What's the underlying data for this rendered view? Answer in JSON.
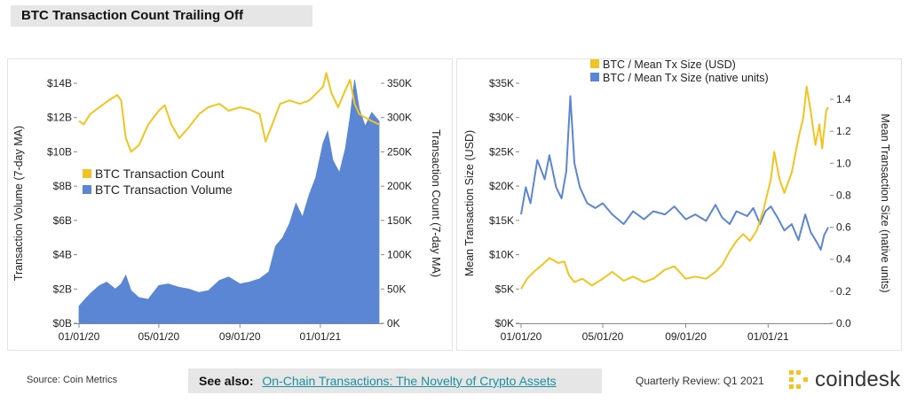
{
  "page": {
    "title": "BTC Transaction Count Trailing Off",
    "source": "Source: Coin Metrics",
    "see_also_label": "See also:",
    "see_also_link": "On-Chain Transactions: The Novelty of Crypto Assets",
    "review": "Quarterly Review: Q1 2021",
    "brand": "coindesk"
  },
  "colors": {
    "yellow": "#f2c41f",
    "blue": "#5b86d4"
  },
  "chart_data": [
    {
      "type": "area+line",
      "title": "",
      "xlabel": "",
      "x_ticks": [
        "01/01/20",
        "05/01/20",
        "09/01/20",
        "01/01/21"
      ],
      "x_range": [
        "2020-01-01",
        "2021-03-31"
      ],
      "y_left": {
        "label": "Transaction Volume (7-day MA)",
        "ticks": [
          "$0B",
          "$2B",
          "$4B",
          "$6B",
          "$8B",
          "$10B",
          "$12B",
          "$14B"
        ],
        "range": [
          0,
          14
        ]
      },
      "y_right": {
        "label": "Transaction Count (7-day MA)",
        "ticks": [
          "0K",
          "50K",
          "100K",
          "150K",
          "200K",
          "250K",
          "300K",
          "350K"
        ],
        "range": [
          0,
          350
        ]
      },
      "legend": [
        "BTC Transaction Count",
        "BTC Transaction Volume"
      ],
      "legend_position": "middle-left",
      "series": [
        {
          "name": "BTC Transaction Volume",
          "axis": "left",
          "color": "#5b86d4",
          "kind": "area",
          "points": [
            [
              "2020-01-01",
              1.0
            ],
            [
              "2020-01-10",
              1.4
            ],
            [
              "2020-01-20",
              1.8
            ],
            [
              "2020-02-01",
              2.2
            ],
            [
              "2020-02-12",
              2.4
            ],
            [
              "2020-02-25",
              2.0
            ],
            [
              "2020-03-05",
              2.3
            ],
            [
              "2020-03-12",
              2.8
            ],
            [
              "2020-03-20",
              1.9
            ],
            [
              "2020-04-01",
              1.5
            ],
            [
              "2020-04-15",
              1.4
            ],
            [
              "2020-05-01",
              2.2
            ],
            [
              "2020-05-15",
              2.3
            ],
            [
              "2020-06-01",
              2.1
            ],
            [
              "2020-06-15",
              2.0
            ],
            [
              "2020-07-01",
              1.8
            ],
            [
              "2020-07-15",
              1.9
            ],
            [
              "2020-08-01",
              2.5
            ],
            [
              "2020-08-15",
              2.7
            ],
            [
              "2020-09-01",
              2.3
            ],
            [
              "2020-09-15",
              2.4
            ],
            [
              "2020-10-01",
              2.6
            ],
            [
              "2020-10-15",
              3.0
            ],
            [
              "2020-10-25",
              4.5
            ],
            [
              "2020-11-05",
              5.0
            ],
            [
              "2020-11-15",
              5.8
            ],
            [
              "2020-11-25",
              7.0
            ],
            [
              "2020-12-05",
              6.2
            ],
            [
              "2020-12-15",
              7.5
            ],
            [
              "2020-12-25",
              8.5
            ],
            [
              "2021-01-05",
              10.5
            ],
            [
              "2021-01-12",
              11.2
            ],
            [
              "2021-01-20",
              9.5
            ],
            [
              "2021-01-30",
              8.8
            ],
            [
              "2021-02-08",
              10.2
            ],
            [
              "2021-02-15",
              12.0
            ],
            [
              "2021-02-22",
              14.2
            ],
            [
              "2021-03-01",
              12.5
            ],
            [
              "2021-03-10",
              11.5
            ],
            [
              "2021-03-20",
              12.3
            ],
            [
              "2021-03-31",
              11.8
            ]
          ]
        },
        {
          "name": "BTC Transaction Count",
          "axis": "right",
          "color": "#f2c41f",
          "kind": "line",
          "points": [
            [
              "2020-01-01",
              295
            ],
            [
              "2020-01-08",
              290
            ],
            [
              "2020-01-18",
              305
            ],
            [
              "2020-02-01",
              315
            ],
            [
              "2020-02-15",
              325
            ],
            [
              "2020-02-28",
              333
            ],
            [
              "2020-03-05",
              325
            ],
            [
              "2020-03-12",
              270
            ],
            [
              "2020-03-20",
              250
            ],
            [
              "2020-04-01",
              260
            ],
            [
              "2020-04-15",
              290
            ],
            [
              "2020-05-01",
              310
            ],
            [
              "2020-05-10",
              318
            ],
            [
              "2020-05-20",
              290
            ],
            [
              "2020-06-01",
              270
            ],
            [
              "2020-06-15",
              285
            ],
            [
              "2020-07-01",
              305
            ],
            [
              "2020-07-15",
              315
            ],
            [
              "2020-08-01",
              320
            ],
            [
              "2020-08-15",
              310
            ],
            [
              "2020-09-01",
              315
            ],
            [
              "2020-09-15",
              312
            ],
            [
              "2020-10-01",
              305
            ],
            [
              "2020-10-10",
              265
            ],
            [
              "2020-10-20",
              290
            ],
            [
              "2020-11-01",
              320
            ],
            [
              "2020-11-15",
              325
            ],
            [
              "2020-12-01",
              320
            ],
            [
              "2020-12-15",
              325
            ],
            [
              "2021-01-05",
              345
            ],
            [
              "2021-01-10",
              365
            ],
            [
              "2021-01-18",
              335
            ],
            [
              "2021-01-28",
              315
            ],
            [
              "2021-02-08",
              340
            ],
            [
              "2021-02-15",
              355
            ],
            [
              "2021-02-22",
              320
            ],
            [
              "2021-03-01",
              305
            ],
            [
              "2021-03-10",
              300
            ],
            [
              "2021-03-20",
              295
            ],
            [
              "2021-03-31",
              290
            ]
          ]
        }
      ]
    },
    {
      "type": "line",
      "title": "",
      "xlabel": "",
      "x_ticks": [
        "01/01/20",
        "05/01/20",
        "09/01/20",
        "01/01/21"
      ],
      "x_range": [
        "2020-01-01",
        "2021-03-31"
      ],
      "y_left": {
        "label": "Mean Transaction Size (USD)",
        "ticks": [
          "$0K",
          "$5K",
          "$10K",
          "$15K",
          "$20K",
          "$25K",
          "$30K",
          "$35K"
        ],
        "range": [
          0,
          35
        ]
      },
      "y_right": {
        "label": "Mean Transaction Size (native units)",
        "ticks": [
          "0.0",
          "0.2",
          "0.4",
          "0.6",
          "0.8",
          "1.0",
          "1.2",
          "1.4"
        ],
        "range": [
          0,
          1.5
        ]
      },
      "legend": [
        "BTC / Mean Tx Size (USD)",
        "BTC / Mean Tx Size (native units)"
      ],
      "legend_position": "top-center",
      "series": [
        {
          "name": "BTC / Mean Tx Size (native units)",
          "axis": "right",
          "color": "#5b86d4",
          "kind": "line",
          "points": [
            [
              "2020-01-01",
              0.68
            ],
            [
              "2020-01-08",
              0.85
            ],
            [
              "2020-01-15",
              0.75
            ],
            [
              "2020-01-25",
              1.02
            ],
            [
              "2020-02-05",
              0.9
            ],
            [
              "2020-02-12",
              1.05
            ],
            [
              "2020-02-22",
              0.85
            ],
            [
              "2020-03-01",
              0.78
            ],
            [
              "2020-03-08",
              0.95
            ],
            [
              "2020-03-14",
              1.42
            ],
            [
              "2020-03-20",
              1.0
            ],
            [
              "2020-03-28",
              0.85
            ],
            [
              "2020-04-08",
              0.75
            ],
            [
              "2020-04-20",
              0.72
            ],
            [
              "2020-05-01",
              0.75
            ],
            [
              "2020-05-15",
              0.68
            ],
            [
              "2020-06-01",
              0.62
            ],
            [
              "2020-06-15",
              0.7
            ],
            [
              "2020-07-01",
              0.65
            ],
            [
              "2020-07-15",
              0.7
            ],
            [
              "2020-08-01",
              0.68
            ],
            [
              "2020-08-15",
              0.73
            ],
            [
              "2020-09-01",
              0.65
            ],
            [
              "2020-09-15",
              0.68
            ],
            [
              "2020-10-01",
              0.64
            ],
            [
              "2020-10-15",
              0.74
            ],
            [
              "2020-10-25",
              0.66
            ],
            [
              "2020-11-05",
              0.62
            ],
            [
              "2020-11-15",
              0.7
            ],
            [
              "2020-12-01",
              0.67
            ],
            [
              "2020-12-10",
              0.72
            ],
            [
              "2020-12-20",
              0.62
            ],
            [
              "2020-12-28",
              0.7
            ],
            [
              "2021-01-05",
              0.73
            ],
            [
              "2021-01-15",
              0.66
            ],
            [
              "2021-01-25",
              0.58
            ],
            [
              "2021-02-05",
              0.62
            ],
            [
              "2021-02-15",
              0.52
            ],
            [
              "2021-02-25",
              0.68
            ],
            [
              "2021-03-05",
              0.57
            ],
            [
              "2021-03-15",
              0.5
            ],
            [
              "2021-03-20",
              0.46
            ],
            [
              "2021-03-25",
              0.55
            ],
            [
              "2021-03-31",
              0.6
            ]
          ]
        },
        {
          "name": "BTC / Mean Tx Size (USD)",
          "axis": "left",
          "color": "#f2c41f",
          "kind": "line",
          "points": [
            [
              "2020-01-01",
              5.0
            ],
            [
              "2020-01-10",
              6.5
            ],
            [
              "2020-01-20",
              7.5
            ],
            [
              "2020-02-01",
              8.5
            ],
            [
              "2020-02-12",
              9.5
            ],
            [
              "2020-02-25",
              8.8
            ],
            [
              "2020-03-05",
              9.0
            ],
            [
              "2020-03-12",
              7.0
            ],
            [
              "2020-03-20",
              6.0
            ],
            [
              "2020-04-01",
              6.5
            ],
            [
              "2020-04-15",
              5.5
            ],
            [
              "2020-05-01",
              6.5
            ],
            [
              "2020-05-15",
              7.5
            ],
            [
              "2020-06-01",
              6.2
            ],
            [
              "2020-06-15",
              6.8
            ],
            [
              "2020-07-01",
              6.0
            ],
            [
              "2020-07-15",
              6.5
            ],
            [
              "2020-08-01",
              7.8
            ],
            [
              "2020-08-15",
              8.3
            ],
            [
              "2020-09-01",
              6.5
            ],
            [
              "2020-09-15",
              6.8
            ],
            [
              "2020-10-01",
              6.5
            ],
            [
              "2020-10-15",
              7.5
            ],
            [
              "2020-10-25",
              8.5
            ],
            [
              "2020-11-05",
              10.5
            ],
            [
              "2020-11-15",
              12.0
            ],
            [
              "2020-11-25",
              13.0
            ],
            [
              "2020-12-05",
              12.0
            ],
            [
              "2020-12-15",
              13.5
            ],
            [
              "2020-12-25",
              16.5
            ],
            [
              "2021-01-05",
              21.0
            ],
            [
              "2021-01-10",
              25.0
            ],
            [
              "2021-01-18",
              21.0
            ],
            [
              "2021-01-25",
              19.0
            ],
            [
              "2021-02-05",
              22.0
            ],
            [
              "2021-02-15",
              27.0
            ],
            [
              "2021-02-22",
              30.0
            ],
            [
              "2021-02-27",
              34.5
            ],
            [
              "2021-03-05",
              31.0
            ],
            [
              "2021-03-12",
              26.0
            ],
            [
              "2021-03-18",
              29.0
            ],
            [
              "2021-03-22",
              25.5
            ],
            [
              "2021-03-28",
              31.0
            ],
            [
              "2021-03-31",
              31.5
            ]
          ]
        }
      ]
    }
  ]
}
